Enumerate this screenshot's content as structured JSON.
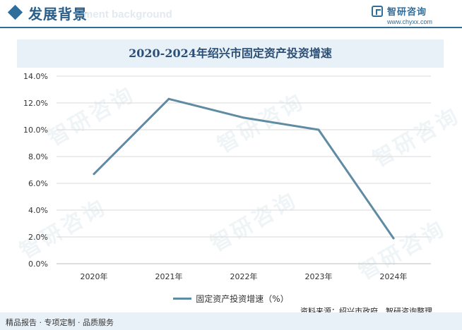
{
  "header": {
    "title": "发展背景",
    "subtitle": "ment background"
  },
  "brand": {
    "name": "智研咨询",
    "url": "www.chyxx.com"
  },
  "watermark_text": "智研咨询",
  "chart_data": {
    "type": "line",
    "title": "2020-2024年绍兴市固定资产投资增速",
    "categories": [
      "2020年",
      "2021年",
      "2022年",
      "2023年",
      "2024年"
    ],
    "series": [
      {
        "name": "固定资产投资增速（%）",
        "values": [
          6.7,
          12.3,
          10.9,
          10.0,
          1.9
        ]
      }
    ],
    "ylim": [
      0,
      14
    ],
    "yticks": [
      "0.0%",
      "2.0%",
      "4.0%",
      "6.0%",
      "8.0%",
      "10.0%",
      "12.0%",
      "14.0%"
    ],
    "grid": true,
    "legend": "bottom",
    "line_color": "#5f8ba3"
  },
  "source": "资料来源：绍兴市政府、智研咨询整理",
  "footer": "精品报告 · 专项定制 · 品质服务"
}
